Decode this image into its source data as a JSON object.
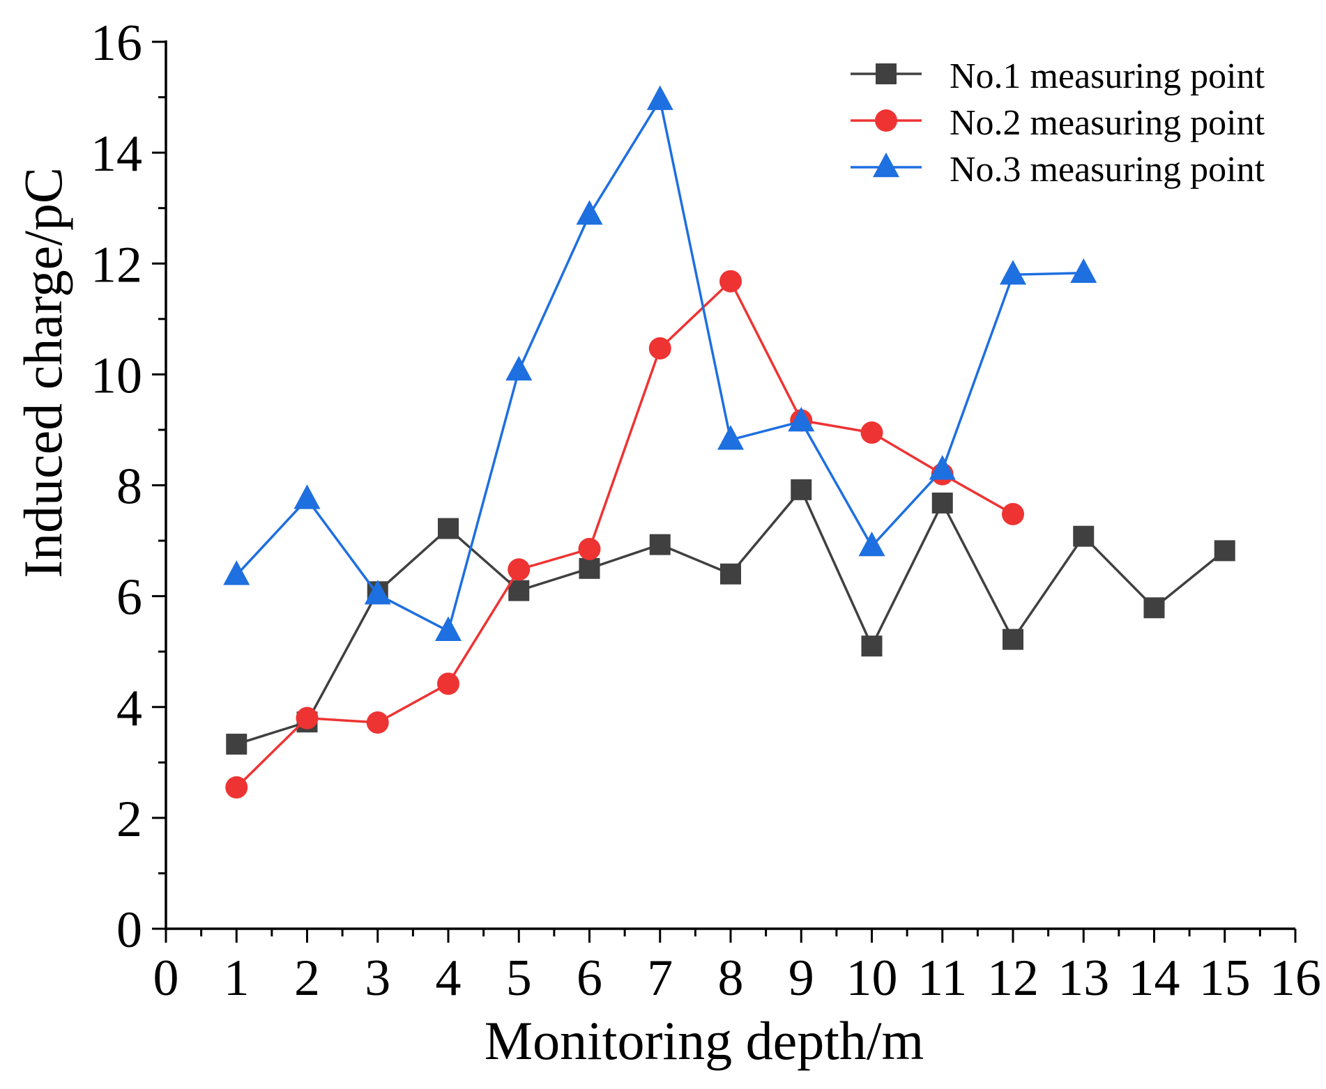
{
  "chart_data": {
    "type": "line",
    "title": "",
    "xlabel": "Monitoring depth/m",
    "ylabel": "Induced charge/pC",
    "xlim": [
      0,
      16
    ],
    "ylim": [
      0,
      16
    ],
    "x_ticks": [
      0,
      1,
      2,
      3,
      4,
      5,
      6,
      7,
      8,
      9,
      10,
      11,
      12,
      13,
      14,
      15,
      16
    ],
    "y_ticks": [
      0,
      2,
      4,
      6,
      8,
      10,
      12,
      14,
      16
    ],
    "legend_position": "top-right",
    "series": [
      {
        "name": "No.1 measuring point",
        "color": "#404040",
        "marker": "square",
        "x": [
          1,
          2,
          3,
          4,
          5,
          6,
          7,
          8,
          9,
          10,
          11,
          12,
          13,
          14,
          15
        ],
        "y": [
          3.33,
          3.73,
          6.08,
          7.22,
          6.1,
          6.5,
          6.93,
          6.4,
          7.92,
          5.1,
          7.68,
          5.22,
          7.08,
          5.79,
          6.82
        ]
      },
      {
        "name": "No.2 measuring point",
        "color": "#ee3333",
        "marker": "circle",
        "x": [
          1,
          2,
          3,
          4,
          5,
          6,
          7,
          8,
          9,
          10,
          11,
          12
        ],
        "y": [
          2.55,
          3.8,
          3.72,
          4.42,
          6.48,
          6.85,
          10.47,
          11.68,
          9.17,
          8.95,
          8.2,
          7.48
        ]
      },
      {
        "name": "No.3 measuring point",
        "color": "#1e6fe0",
        "marker": "triangle",
        "x": [
          1,
          2,
          3,
          4,
          5,
          6,
          7,
          8,
          9,
          10,
          11,
          12,
          13
        ],
        "y": [
          6.38,
          7.75,
          6.03,
          5.37,
          10.07,
          12.88,
          14.95,
          8.82,
          9.15,
          6.9,
          8.28,
          11.8,
          11.83
        ]
      }
    ]
  }
}
